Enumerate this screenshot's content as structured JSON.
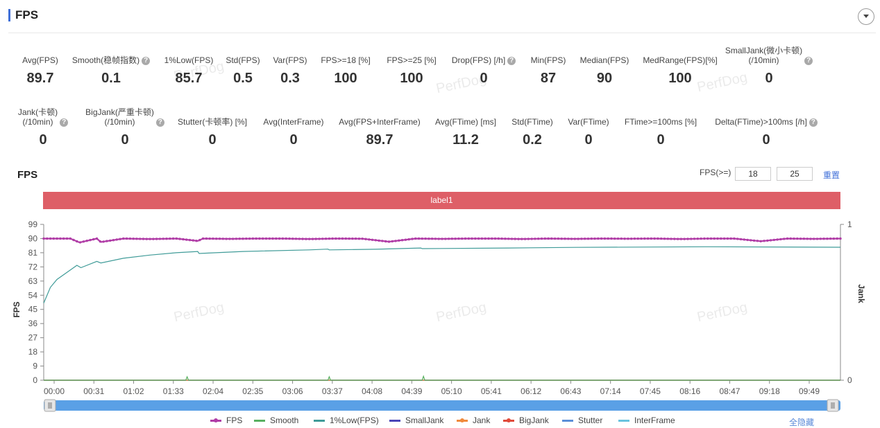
{
  "panel": {
    "title": "FPS"
  },
  "metrics_row1": [
    {
      "label": "Avg(FPS)",
      "value": "89.7",
      "help": false
    },
    {
      "label": "Smooth(稳帧指数)",
      "value": "0.1",
      "help": true
    },
    {
      "label": "1%Low(FPS)",
      "value": "85.7",
      "help": false
    },
    {
      "label": "Std(FPS)",
      "value": "0.5",
      "help": false
    },
    {
      "label": "Var(FPS)",
      "value": "0.3",
      "help": false
    },
    {
      "label": "FPS>=18 [%]",
      "value": "100",
      "help": false
    },
    {
      "label": "FPS>=25 [%]",
      "value": "100",
      "help": false
    },
    {
      "label": "Drop(FPS) [/h]",
      "value": "0",
      "help": true
    },
    {
      "label": "Min(FPS)",
      "value": "87",
      "help": false
    },
    {
      "label": "Median(FPS)",
      "value": "90",
      "help": false
    },
    {
      "label": "MedRange(FPS)[%]",
      "value": "100",
      "help": false
    },
    {
      "label": "SmallJank(微小卡顿)\n(/10min)",
      "value": "0",
      "help": true
    }
  ],
  "metrics_row2": [
    {
      "label": "Jank(卡顿)\n(/10min)",
      "value": "0",
      "help": true
    },
    {
      "label": "BigJank(严重卡顿)\n(/10min)",
      "value": "0",
      "help": true
    },
    {
      "label": "Stutter(卡顿率) [%]",
      "value": "0",
      "help": false
    },
    {
      "label": "Avg(InterFrame)",
      "value": "0",
      "help": false
    },
    {
      "label": "Avg(FPS+InterFrame)",
      "value": "89.7",
      "help": false
    },
    {
      "label": "Avg(FTime) [ms]",
      "value": "11.2",
      "help": false
    },
    {
      "label": "Std(FTime)",
      "value": "0.2",
      "help": false
    },
    {
      "label": "Var(FTime)",
      "value": "0",
      "help": false
    },
    {
      "label": "FTime>=100ms [%]",
      "value": "0",
      "help": false
    },
    {
      "label": "Delta(FTime)>100ms [/h]",
      "value": "0",
      "help": true
    }
  ],
  "chart_controls": {
    "title": "FPS",
    "threshold_label": "FPS(>=)",
    "threshold1": "18",
    "threshold2": "25",
    "reset_label": "重置",
    "band_label": "label1"
  },
  "watermark": "PerfDog",
  "legend": {
    "hide_all": "全隐藏",
    "items": [
      {
        "name": "FPS",
        "color": "#b03ca6",
        "dot": true
      },
      {
        "name": "Smooth",
        "color": "#58b060",
        "dot": false
      },
      {
        "name": "1%Low(FPS)",
        "color": "#3f9b98",
        "dot": false
      },
      {
        "name": "SmallJank",
        "color": "#4a46b8",
        "dot": false
      },
      {
        "name": "Jank",
        "color": "#f08a3c",
        "dot": true
      },
      {
        "name": "BigJank",
        "color": "#e04a3a",
        "dot": true
      },
      {
        "name": "Stutter",
        "color": "#5b8fd8",
        "dot": false
      },
      {
        "name": "InterFrame",
        "color": "#69c3de",
        "dot": false
      }
    ]
  },
  "chart_data": {
    "type": "line",
    "ylabel": "FPS",
    "y2label": "Jank",
    "ylim": [
      0,
      99
    ],
    "yticks": [
      0,
      9,
      18,
      27,
      36,
      45,
      54,
      63,
      72,
      81,
      90,
      99
    ],
    "y2lim": [
      0,
      1
    ],
    "y2ticks": [
      0,
      1
    ],
    "x_unit": "seconds",
    "xlim": [
      0,
      600
    ],
    "xticks": [
      "00:00",
      "00:31",
      "01:02",
      "01:33",
      "02:04",
      "02:35",
      "03:06",
      "03:37",
      "04:08",
      "04:39",
      "05:10",
      "05:41",
      "06:12",
      "06:43",
      "07:14",
      "07:45",
      "08:16",
      "08:47",
      "09:18",
      "09:49"
    ],
    "grid": false,
    "series": [
      {
        "name": "FPS",
        "x": [
          0,
          20,
          27,
          40,
          43,
          60,
          80,
          100,
          116,
          120,
          140,
          160,
          180,
          200,
          220,
          240,
          260,
          280,
          300,
          320,
          340,
          360,
          380,
          400,
          420,
          440,
          460,
          480,
          500,
          520,
          540,
          560,
          580,
          600
        ],
        "values": [
          90,
          90,
          87.5,
          90,
          87.8,
          90,
          89.7,
          90,
          88.5,
          90,
          89.8,
          90,
          90,
          89.7,
          90,
          89.9,
          88.0,
          90,
          89.8,
          90,
          90,
          89.7,
          90,
          89.8,
          90,
          89.9,
          90,
          89.7,
          90,
          90,
          88.3,
          90,
          89.8,
          90
        ]
      },
      {
        "name": "1%Low(FPS)",
        "x": [
          0,
          5,
          10,
          20,
          25,
          28,
          40,
          43,
          60,
          80,
          100,
          116,
          117,
          150,
          200,
          214,
          215,
          250,
          284,
          285,
          350,
          400,
          500,
          600
        ],
        "values": [
          49,
          59,
          64,
          70,
          73,
          71.5,
          75.5,
          74.5,
          77.5,
          79.5,
          81,
          81.8,
          80.5,
          81.8,
          82.8,
          83.3,
          82.8,
          83.2,
          84,
          83.6,
          84,
          84.4,
          84.8,
          84.5
        ]
      },
      {
        "name": "Smooth",
        "x": [
          0,
          107,
          108,
          109,
          214,
          215,
          216,
          285,
          286,
          287,
          600
        ],
        "values": [
          0,
          0,
          2.2,
          0,
          0,
          2.2,
          0,
          0,
          2.5,
          0,
          0
        ]
      },
      {
        "name": "SmallJank",
        "x": [
          0,
          600
        ],
        "values": [
          0,
          0
        ]
      },
      {
        "name": "Jank",
        "x": [
          0,
          600
        ],
        "values": [
          0,
          0
        ]
      },
      {
        "name": "BigJank",
        "x": [
          0,
          600
        ],
        "values": [
          0,
          0
        ]
      },
      {
        "name": "Stutter",
        "x": [
          0,
          600
        ],
        "values": [
          0,
          0
        ]
      },
      {
        "name": "InterFrame",
        "x": [
          0,
          600
        ],
        "values": [
          0,
          0
        ]
      }
    ]
  }
}
